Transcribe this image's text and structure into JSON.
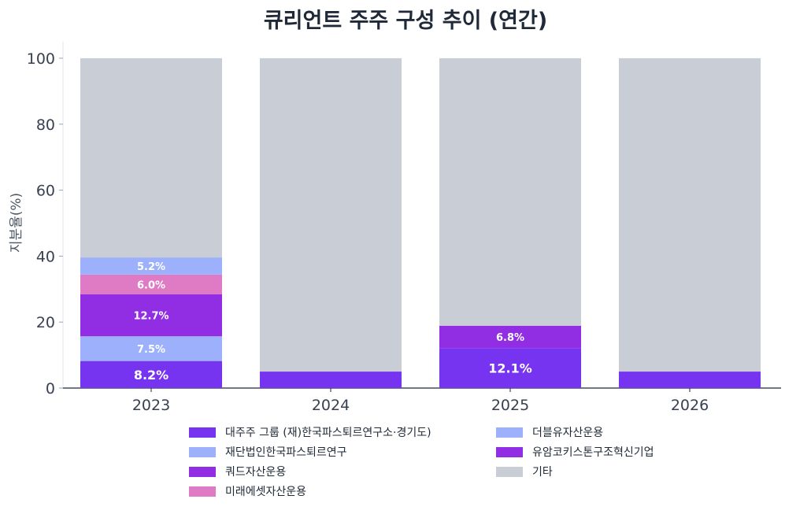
{
  "chart_data": {
    "type": "bar",
    "stacked": true,
    "title": "큐리언트 주주 구성 추이 (연간)",
    "xlabel": "",
    "ylabel": "지분율(%)",
    "ylim": [
      0,
      105
    ],
    "yticks": [
      "0",
      "20",
      "40",
      "60",
      "80",
      "100"
    ],
    "categories": [
      "2023",
      "2024",
      "2025",
      "2026"
    ],
    "grid": false,
    "legend_position": "bottom",
    "series": [
      {
        "name": "대주주 그룹 (재)한국파스퇴르연구소·경기도)",
        "color": "#7633f0",
        "values": [
          8.2,
          5.0,
          12.1,
          5.0
        ],
        "labels": [
          "8.2%",
          "",
          "12.1%",
          ""
        ]
      },
      {
        "name": "재단법인한국파스퇴르연구",
        "color": "#9db0fb",
        "values": [
          7.5,
          0,
          0,
          0
        ],
        "labels": [
          "7.5%",
          "",
          "",
          ""
        ]
      },
      {
        "name": "쿼드자산운용",
        "color": "#912ee3",
        "values": [
          12.7,
          0,
          0,
          0
        ],
        "labels": [
          "12.7%",
          "",
          "",
          ""
        ]
      },
      {
        "name": "미래에셋자산운용",
        "color": "#df7ac4",
        "values": [
          6.0,
          0,
          0,
          0
        ],
        "labels": [
          "6.0%",
          "",
          "",
          ""
        ]
      },
      {
        "name": "더블유자산운용",
        "color": "#9db0fb",
        "values": [
          5.2,
          0,
          0,
          0
        ],
        "labels": [
          "5.2%",
          "",
          "",
          ""
        ]
      },
      {
        "name": "유암코키스톤구조혁신기업",
        "color": "#912ee3",
        "values": [
          0,
          0,
          6.8,
          0
        ],
        "labels": [
          "",
          "",
          "6.8%",
          ""
        ]
      },
      {
        "name": "기타",
        "color": "#c9cdd6",
        "values": [
          60.4,
          95.0,
          81.1,
          95.0
        ],
        "labels": [
          "",
          "",
          "",
          ""
        ]
      }
    ]
  }
}
